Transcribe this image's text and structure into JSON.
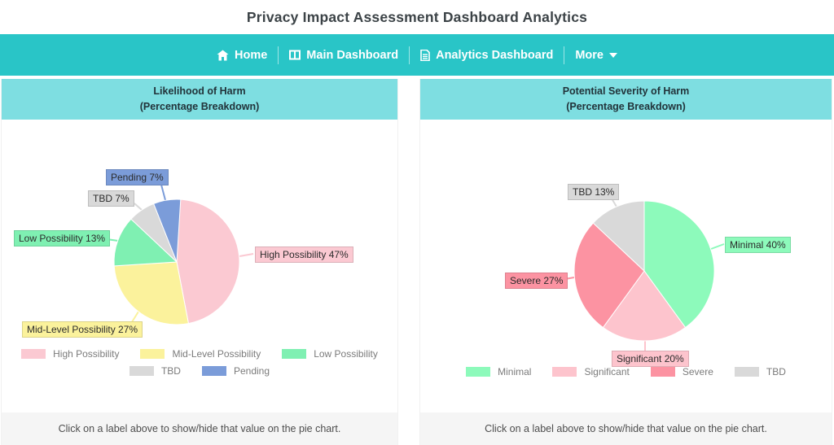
{
  "page": {
    "title": "Privacy Impact Assessment Dashboard Analytics"
  },
  "nav": {
    "items": [
      {
        "label": "Home",
        "icon": "home-icon",
        "has_dropdown": false
      },
      {
        "label": "Main Dashboard",
        "icon": "columns-icon",
        "has_dropdown": false
      },
      {
        "label": "Analytics Dashboard",
        "icon": "file-icon",
        "has_dropdown": false
      },
      {
        "label": "More",
        "icon": "caret-down-icon",
        "has_dropdown": true
      }
    ]
  },
  "colors": {
    "navbar_teal": "#29c5c7",
    "panel_header_teal": "#7edee1",
    "footer_gray": "#f5f5f5"
  },
  "chart_data": [
    {
      "type": "pie",
      "title": "Likelihood of Harm",
      "subtitle": "(Percentage Breakdown)",
      "labels": [
        "High Possibility",
        "Mid-Level Possibility",
        "Low Possibility",
        "TBD",
        "Pending"
      ],
      "values": [
        47,
        27,
        13,
        7,
        7
      ],
      "unit": "%",
      "colors": [
        "#fbc9d2",
        "#fbf29c",
        "#7ff0b2",
        "#d9d9d9",
        "#7b9cd9"
      ],
      "callout_labels": [
        "High Possibility 47%",
        "Mid-Level Possibility 27%",
        "Low Possibility 13%",
        "TBD 7%",
        "Pending 7%"
      ],
      "legend_position": "bottom",
      "footer_note": "Click on a label above to show/hide that value on the pie chart."
    },
    {
      "type": "pie",
      "title": "Potential Severity of Harm",
      "subtitle": "(Percentage Breakdown)",
      "labels": [
        "Minimal",
        "Significant",
        "Severe",
        "TBD"
      ],
      "values": [
        40,
        20,
        27,
        13
      ],
      "unit": "%",
      "colors": [
        "#8dfabb",
        "#fdc4cd",
        "#fc93a2",
        "#d9d9d9"
      ],
      "callout_labels": [
        "Minimal 40%",
        "Significant 20%",
        "Severe 27%",
        "TBD 13%"
      ],
      "legend_position": "bottom",
      "footer_note": "Click on a label above to show/hide that value on the pie chart."
    }
  ]
}
